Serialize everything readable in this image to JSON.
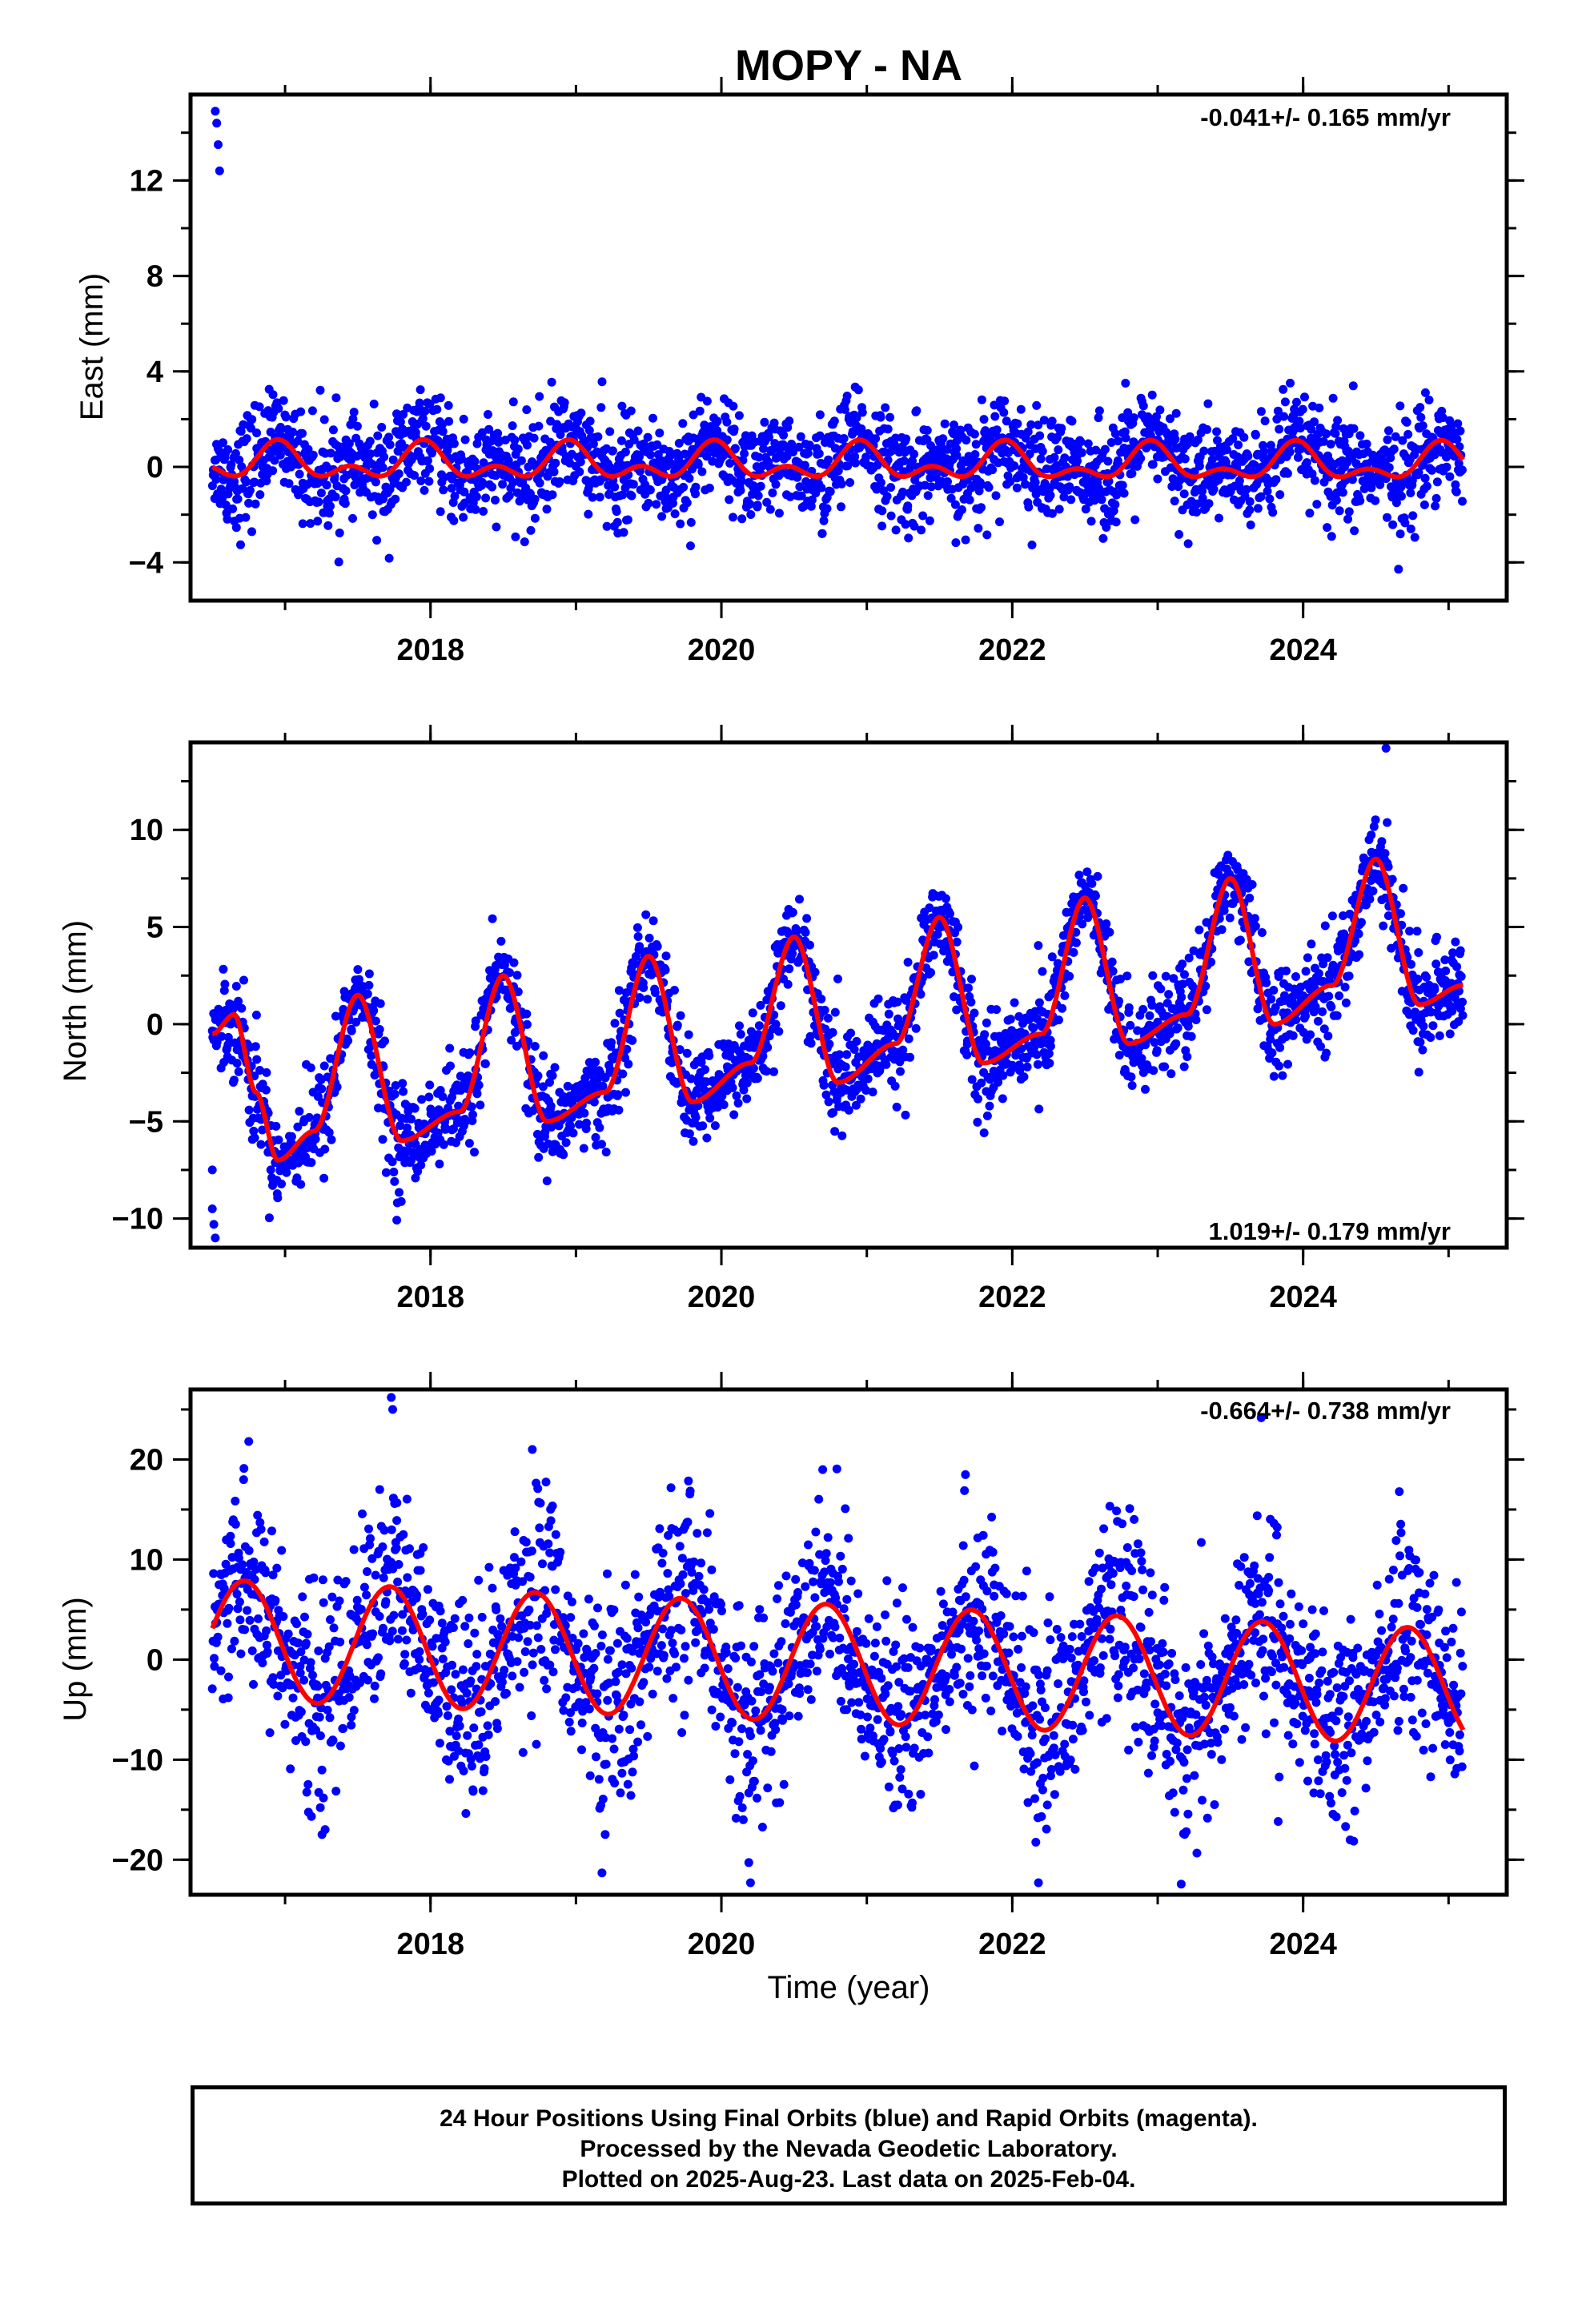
{
  "colors": {
    "final_orbits": "#0000ff",
    "model_fit": "#ff0000",
    "axis": "#000000"
  },
  "chart_data": [
    {
      "type": "scatter",
      "title": "MOPY - NA",
      "xlabel": "",
      "ylabel": "East (mm)",
      "xlim": [
        2016.35,
        2025.4
      ],
      "ylim": [
        -5.6,
        15.6
      ],
      "xticks": [
        2018,
        2020,
        2022,
        2024
      ],
      "yticks": [
        -4,
        0,
        4,
        8,
        12
      ],
      "grid": false,
      "rate_text": "-0.041+/- 0.165 mm/yr",
      "rate_position": "top-right",
      "series": [
        {
          "role": "daily-positions",
          "x_range": [
            2016.5,
            2025.1
          ],
          "outliers": [
            [
              2016.52,
              14.9
            ],
            [
              2016.53,
              14.4
            ],
            [
              2016.54,
              13.5
            ],
            [
              2016.55,
              12.4
            ]
          ]
        },
        {
          "role": "model-fit",
          "seasonal_pattern": "annual + semiannual",
          "min": -1.3,
          "max": 0.8
        }
      ]
    },
    {
      "type": "scatter",
      "title": "",
      "xlabel": "",
      "ylabel": "North (mm)",
      "xlim": [
        2016.35,
        2025.4
      ],
      "ylim": [
        -11.5,
        14.5
      ],
      "xticks": [
        2018,
        2020,
        2022,
        2024
      ],
      "yticks": [
        -10,
        -5,
        0,
        5,
        10
      ],
      "grid": false,
      "rate_text": "1.019+/- 0.179 mm/yr",
      "rate_position": "bottom-right",
      "series": [
        {
          "role": "daily-positions",
          "x_range": [
            2016.5,
            2025.1
          ],
          "outliers": [
            [
              2016.5,
              -7.5
            ],
            [
              2016.5,
              -9.5
            ],
            [
              2016.51,
              -10.3
            ],
            [
              2016.52,
              -11.0
            ],
            [
              2024.57,
              14.2
            ]
          ]
        },
        {
          "role": "model-fit",
          "x": [
            2016.5,
            2016.65,
            2016.8,
            2016.95,
            2017.2,
            2017.5,
            2017.8,
            2018.2,
            2018.5,
            2018.8,
            2019.2,
            2019.5,
            2019.8,
            2020.2,
            2020.5,
            2020.8,
            2021.2,
            2021.5,
            2021.8,
            2022.2,
            2022.5,
            2022.8,
            2023.2,
            2023.5,
            2023.8,
            2024.2,
            2024.5,
            2024.8,
            2025.1
          ],
          "y": [
            -0.5,
            0.5,
            -3.5,
            -7.0,
            -5.5,
            1.5,
            -6.0,
            -4.5,
            2.5,
            -5.0,
            -3.5,
            3.5,
            -4.0,
            -2.0,
            4.5,
            -3.0,
            -1.0,
            5.5,
            -2.0,
            -0.5,
            6.5,
            -1.0,
            0.5,
            7.5,
            0.0,
            2.0,
            8.5,
            1.0,
            2.0
          ]
        }
      ]
    },
    {
      "type": "scatter",
      "title": "",
      "xlabel": "Time (year)",
      "ylabel": "Up (mm)",
      "xlim": [
        2016.35,
        2025.4
      ],
      "ylim": [
        -23.5,
        27.0
      ],
      "xticks": [
        2018,
        2020,
        2022,
        2024
      ],
      "yticks": [
        -20,
        -10,
        0,
        10,
        20
      ],
      "grid": false,
      "rate_text": "-0.664+/- 0.738 mm/yr",
      "rate_position": "top-right",
      "series": [
        {
          "role": "daily-positions",
          "x_range": [
            2016.5,
            2025.1
          ],
          "outliers": [
            [
              2017.73,
              26.2
            ],
            [
              2017.74,
              25.0
            ],
            [
              2020.2,
              -22.3
            ],
            [
              2016.75,
              21.8
            ],
            [
              2018.7,
              21.0
            ]
          ]
        },
        {
          "role": "model-fit",
          "seasonal_pattern": "annual",
          "amplitude_start": 6.0,
          "amplitude_end": 5.8,
          "mean_start": 2.0,
          "mean_end": -2.8
        }
      ]
    }
  ],
  "footer": {
    "line1": "24 Hour Positions Using Final Orbits (blue) and Rapid Orbits (magenta).",
    "line2": "Processed by the Nevada Geodetic Laboratory.",
    "line3": "Plotted on 2025-Aug-23. Last data on 2025-Feb-04."
  }
}
